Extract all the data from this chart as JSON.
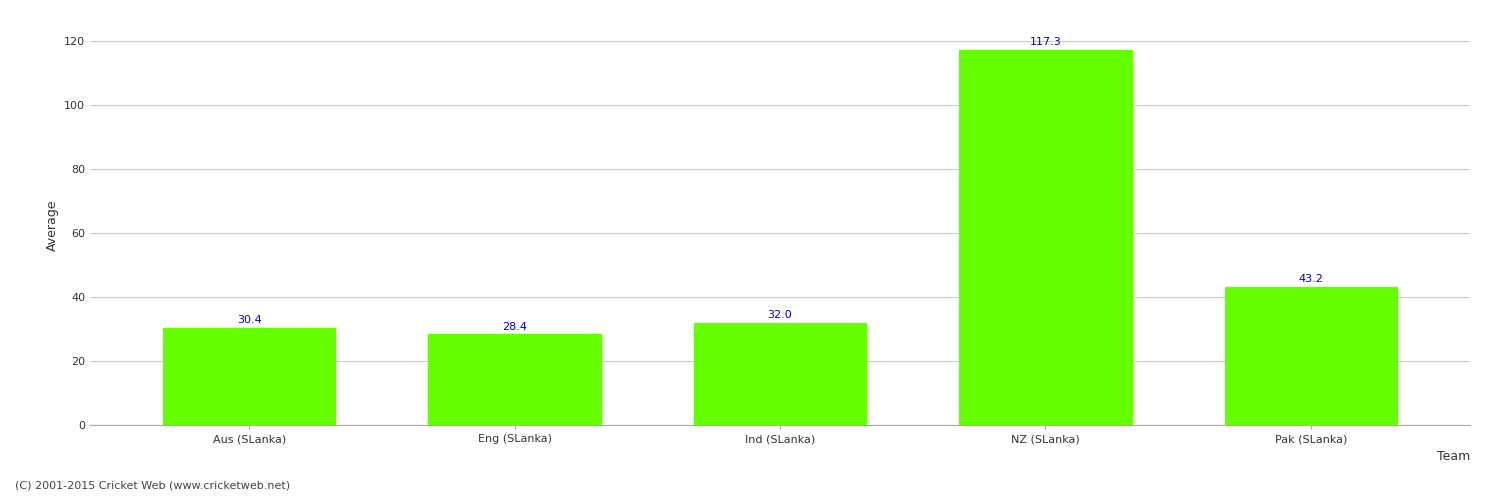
{
  "categories": [
    "Aus (SLanka)",
    "Eng (SLanka)",
    "Ind (SLanka)",
    "NZ (SLanka)",
    "Pak (SLanka)"
  ],
  "values": [
    30.4,
    28.4,
    32.0,
    117.3,
    43.2
  ],
  "bar_color": "#66ff00",
  "bar_edge_color": "#66ff00",
  "xlabel": "Team",
  "ylabel": "Average",
  "ylim": [
    0,
    125
  ],
  "yticks": [
    0,
    20,
    40,
    60,
    80,
    100,
    120
  ],
  "value_color": "#0000cc",
  "value_fontsize": 8,
  "axis_label_fontsize": 9,
  "tick_fontsize": 8,
  "background_color": "#ffffff",
  "grid_color": "#cccccc",
  "footer_text": "(C) 2001-2015 Cricket Web (www.cricketweb.net)",
  "footer_fontsize": 8,
  "footer_color": "#444444"
}
